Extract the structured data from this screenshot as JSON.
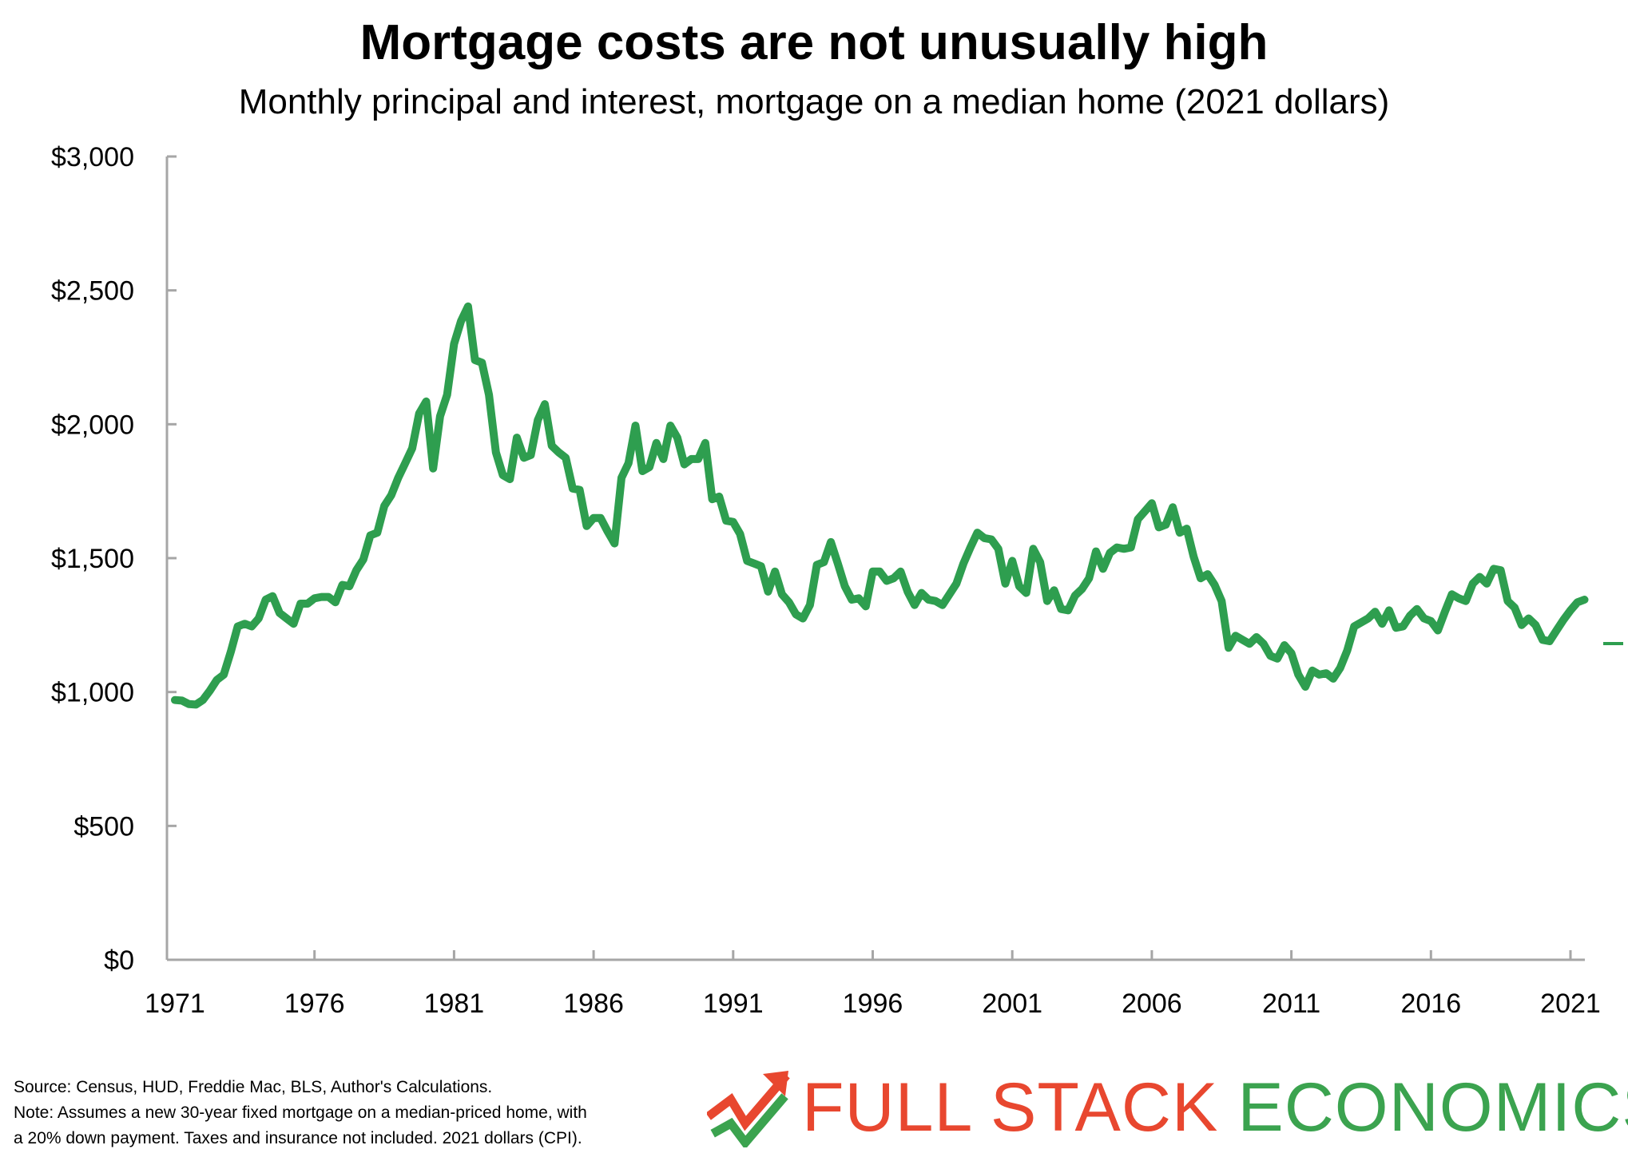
{
  "colors": {
    "line": "#2e9e4f",
    "axis": "#a6a6a6",
    "brand_red": "#e8472f",
    "brand_green": "#3ba34f"
  },
  "brand": {
    "word1": "FULL STACK",
    "word2": "ECONOMICS",
    "icon": "trend-arrow-icon"
  },
  "footer": {
    "source": "Source: Census, HUD, Freddie Mac, BLS, Author's Calculations.",
    "note_line1": "Note: Assumes a new 30-year fixed mortgage on a median-priced home, with",
    "note_line2": "a 20% down payment. Taxes and insurance not included. 2021 dollars (CPI)."
  },
  "chart_data": {
    "type": "line",
    "title": "Mortgage costs are not unusually high",
    "subtitle": "Monthly principal and interest, mortgage on a median home (2021 dollars)",
    "xlabel": "",
    "ylabel": "",
    "xlim": [
      1971,
      2021.5
    ],
    "ylim": [
      0,
      3000
    ],
    "x_ticks": [
      1971,
      1976,
      1981,
      1986,
      1991,
      1996,
      2001,
      2006,
      2011,
      2016,
      2021
    ],
    "x_tick_labels": [
      "1971",
      "1976",
      "1981",
      "1986",
      "1991",
      "1996",
      "2001",
      "2006",
      "2011",
      "2016",
      "2021"
    ],
    "y_ticks": [
      0,
      500,
      1000,
      1500,
      2000,
      2500,
      3000
    ],
    "y_tick_labels": [
      "$0",
      "$500",
      "$1,000",
      "$1,500",
      "$2,000",
      "$2,500",
      "$3,000"
    ],
    "grid": false,
    "legend": "none",
    "series": [
      {
        "x": [
          1971,
          1971.25,
          1971.5,
          1971.75,
          1972,
          1972.25,
          1972.5,
          1972.75,
          1973,
          1973.25,
          1973.5,
          1973.75,
          1974,
          1974.25,
          1974.5,
          1974.75,
          1975,
          1975.25,
          1975.5,
          1975.75,
          1976,
          1976.25,
          1976.5,
          1976.75,
          1977,
          1977.25,
          1977.5,
          1977.75,
          1978,
          1978.25,
          1978.5,
          1978.75,
          1979,
          1979.25,
          1979.5,
          1979.75,
          1980,
          1980.25,
          1980.5,
          1980.75,
          1981,
          1981.25,
          1981.5,
          1981.75,
          1982,
          1982.25,
          1982.5,
          1982.75,
          1983,
          1983.25,
          1983.5,
          1983.75,
          1984,
          1984.25,
          1984.5,
          1984.75,
          1985,
          1985.25,
          1985.5,
          1985.75,
          1986,
          1986.25,
          1986.5,
          1986.75,
          1987,
          1987.25,
          1987.5,
          1987.75,
          1988,
          1988.25,
          1988.5,
          1988.75,
          1989,
          1989.25,
          1989.5,
          1989.75,
          1990,
          1990.25,
          1990.5,
          1990.75,
          1991,
          1991.25,
          1991.5,
          1991.75,
          1992,
          1992.25,
          1992.5,
          1992.75,
          1993,
          1993.25,
          1993.5,
          1993.75,
          1994,
          1994.25,
          1994.5,
          1994.75,
          1995,
          1995.25,
          1995.5,
          1995.75,
          1996,
          1996.25,
          1996.5,
          1996.75,
          1997,
          1997.25,
          1997.5,
          1997.75,
          1998,
          1998.25,
          1998.5,
          1998.75,
          1999,
          1999.25,
          1999.5,
          1999.75,
          2000,
          2000.25,
          2000.5,
          2000.75,
          2001,
          2001.25,
          2001.5,
          2001.75,
          2002,
          2002.25,
          2002.5,
          2002.75,
          2003,
          2003.25,
          2003.5,
          2003.75,
          2004,
          2004.25,
          2004.5,
          2004.75,
          2005,
          2005.25,
          2005.5,
          2005.75,
          2006,
          2006.25,
          2006.5,
          2006.75,
          2007,
          2007.25,
          2007.5,
          2007.75,
          2008,
          2008.25,
          2008.5,
          2008.75,
          2009,
          2009.25,
          2009.5,
          2009.75,
          2010,
          2010.25,
          2010.5,
          2010.75,
          2011,
          2011.25,
          2011.5,
          2011.75,
          2012,
          2012.25,
          2012.5,
          2012.75,
          2013,
          2013.25,
          2013.5,
          2013.75,
          2014,
          2014.25,
          2014.5,
          2014.75,
          2015,
          2015.25,
          2015.5,
          2015.75,
          2016,
          2016.25,
          2016.5,
          2016.75,
          2017,
          2017.25,
          2017.5,
          2017.75,
          2018,
          2018.25,
          2018.5,
          2018.75,
          2019,
          2019.25,
          2019.5,
          2019.75,
          2020,
          2020.25,
          2020.5,
          2020.75,
          2021,
          2021.25,
          2021.5
        ],
        "values": [
          970,
          968,
          955,
          953,
          970,
          1005,
          1045,
          1065,
          1150,
          1245,
          1255,
          1245,
          1275,
          1345,
          1358,
          1295,
          1275,
          1255,
          1330,
          1330,
          1350,
          1355,
          1355,
          1335,
          1400,
          1395,
          1455,
          1495,
          1585,
          1595,
          1695,
          1735,
          1800,
          1855,
          1910,
          2040,
          2085,
          1835,
          2030,
          2110,
          2300,
          2385,
          2440,
          2240,
          2230,
          2110,
          1895,
          1810,
          1795,
          1950,
          1875,
          1885,
          2015,
          2075,
          1920,
          1895,
          1875,
          1760,
          1755,
          1620,
          1650,
          1650,
          1600,
          1555,
          1800,
          1855,
          1995,
          1825,
          1840,
          1930,
          1870,
          1995,
          1950,
          1850,
          1870,
          1870,
          1930,
          1720,
          1730,
          1640,
          1635,
          1590,
          1490,
          1480,
          1470,
          1375,
          1450,
          1365,
          1335,
          1290,
          1275,
          1325,
          1475,
          1485,
          1560,
          1480,
          1395,
          1345,
          1350,
          1320,
          1450,
          1450,
          1415,
          1425,
          1450,
          1375,
          1325,
          1370,
          1345,
          1340,
          1325,
          1365,
          1405,
          1480,
          1540,
          1595,
          1575,
          1570,
          1535,
          1405,
          1490,
          1395,
          1370,
          1535,
          1485,
          1340,
          1380,
          1310,
          1305,
          1360,
          1385,
          1425,
          1525,
          1460,
          1520,
          1540,
          1535,
          1540,
          1645,
          1675,
          1705,
          1615,
          1625,
          1690,
          1595,
          1610,
          1505,
          1425,
          1440,
          1400,
          1340,
          1165,
          1210,
          1195,
          1180,
          1205,
          1180,
          1135,
          1125,
          1175,
          1145,
          1065,
          1020,
          1080,
          1065,
          1070,
          1050,
          1090,
          1155,
          1245,
          1260,
          1275,
          1300,
          1255,
          1305,
          1240,
          1245,
          1285,
          1310,
          1275,
          1265,
          1230,
          1300,
          1365,
          1350,
          1340,
          1405,
          1430,
          1405,
          1460,
          1455,
          1340,
          1315,
          1250,
          1275,
          1250,
          1195,
          1190,
          1230,
          1270,
          1305,
          1335,
          1345
        ]
      }
    ]
  }
}
